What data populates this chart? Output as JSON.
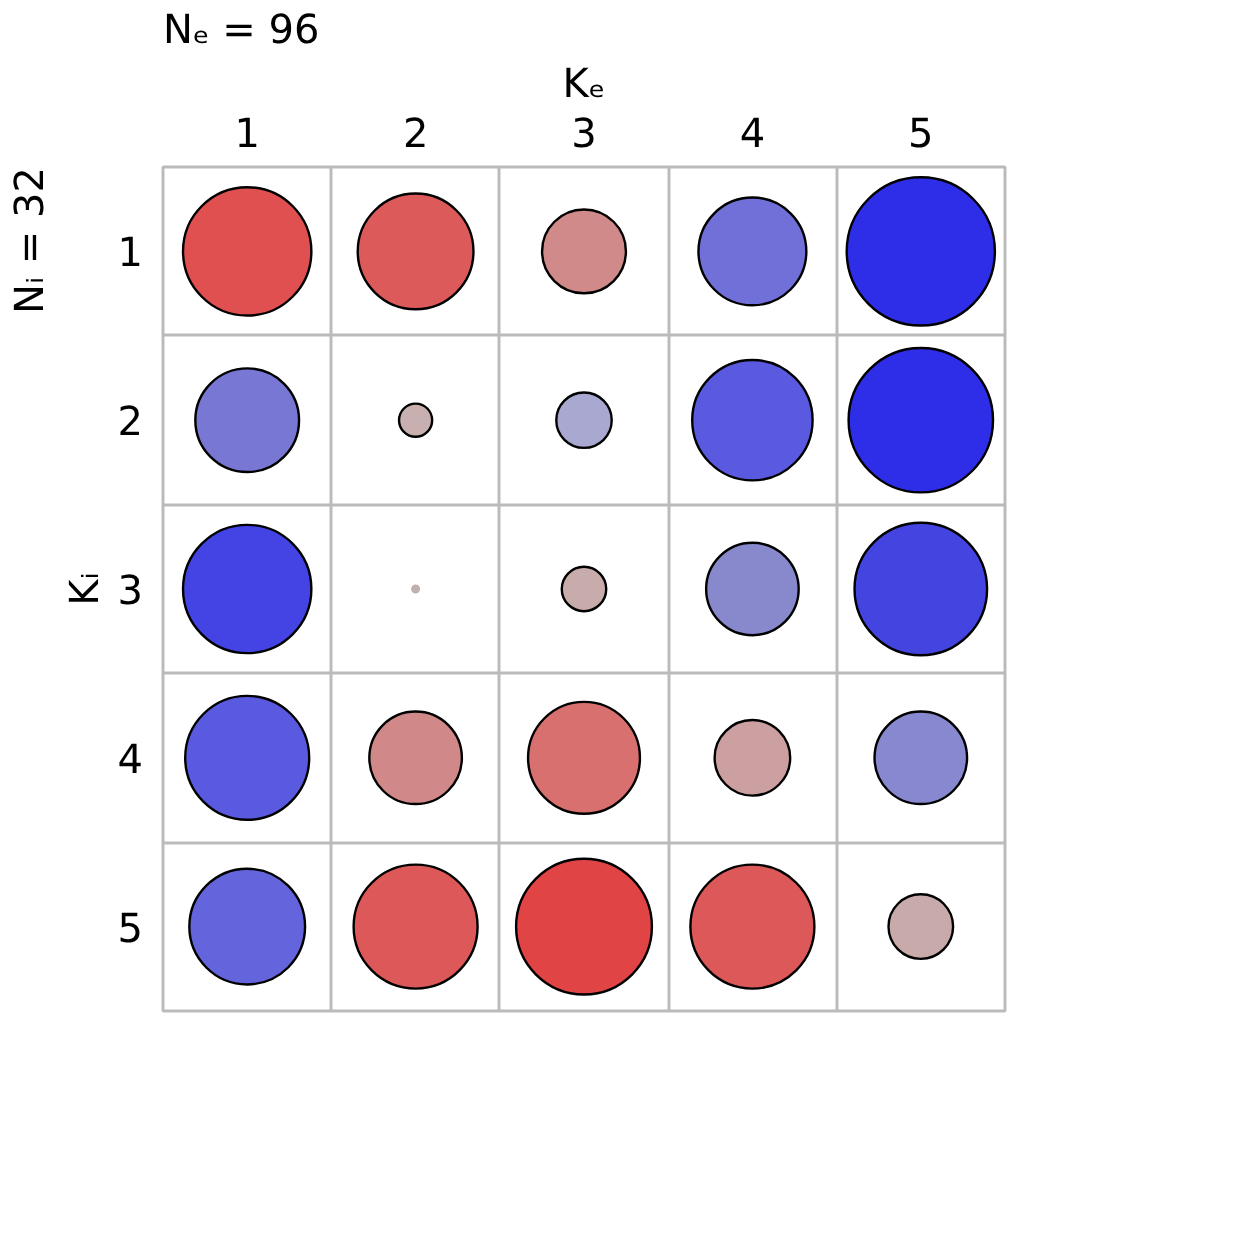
{
  "chart_data": {
    "type": "bubble",
    "xlabel": "Kₑ",
    "ylabel": "Kᵢ",
    "annotations": [
      "Nₑ = 96",
      "Nᵢ = 32"
    ],
    "xlim": [
      0.5,
      5.5
    ],
    "xticks": [
      1,
      2,
      3,
      4,
      5
    ],
    "ylim": [
      5.5,
      0.5
    ],
    "yticks": [
      1,
      2,
      3,
      4,
      5
    ],
    "grid": true,
    "marker": "circle",
    "series": [
      {
        "x": [
          1,
          2,
          3,
          4,
          5,
          1,
          2,
          3,
          4,
          5,
          1,
          2,
          3,
          4,
          5,
          1,
          2,
          3,
          4,
          5,
          1,
          2,
          3,
          4,
          5
        ],
        "values": [
          1,
          1,
          1,
          1,
          1,
          2,
          2,
          2,
          2,
          2,
          3,
          3,
          3,
          3,
          3,
          4,
          4,
          4,
          4,
          4,
          5,
          5,
          5,
          5,
          5
        ],
        "sizes": [
          0.75,
          0.61,
          0.32,
          0.53,
          1,
          0.49,
          0.05,
          0.14,
          0.66,
          0.95,
          0.75,
          0.002,
          0.09,
          0.39,
          0.8,
          0.7,
          0.39,
          0.57,
          0.26,
          0.39,
          0.61,
          0.7,
          0.84,
          0.7,
          0.19
        ],
        "colors": [
          "#e05050",
          "#dd5a5a",
          "#d08a8a",
          "#7070d8",
          "#2e2ee8",
          "#7878d4",
          "#c8b0b0",
          "#a8a8d0",
          "#5a5ae0",
          "#2e2ee8",
          "#4444e4",
          "#c0b0b0",
          "#c8acac",
          "#8888cc",
          "#4444e0",
          "#5a5ae0",
          "#d08888",
          "#d87070",
          "#cca0a0",
          "#8888d0",
          "#6464dc",
          "#dd5858",
          "#e04444",
          "#dd5858",
          "#c8aaaa"
        ]
      }
    ]
  }
}
